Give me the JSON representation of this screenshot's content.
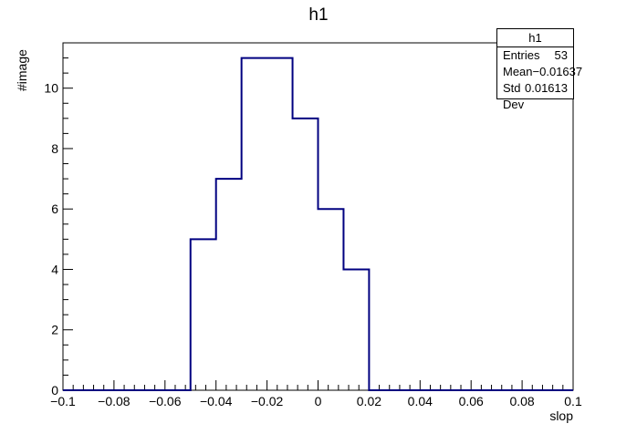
{
  "chart_data": {
    "type": "bar",
    "title": "h1",
    "xlabel": "slop",
    "ylabel": "#image",
    "xlim": [
      -0.1,
      0.1
    ],
    "ylim": [
      0,
      11.5
    ],
    "x_ticks": [
      "−0.1",
      "−0.08",
      "−0.06",
      "−0.04",
      "−0.02",
      "0",
      "0.02",
      "0.04",
      "0.06",
      "0.08",
      "0.1"
    ],
    "x_tick_values": [
      -0.1,
      -0.08,
      -0.06,
      -0.04,
      -0.02,
      0,
      0.02,
      0.04,
      0.06,
      0.08,
      0.1
    ],
    "y_ticks": [
      "0",
      "2",
      "4",
      "6",
      "8",
      "10"
    ],
    "y_tick_values": [
      0,
      2,
      4,
      6,
      8,
      10
    ],
    "bin_width": 0.01,
    "bins": [
      {
        "low": -0.05,
        "high": -0.04,
        "value": 5
      },
      {
        "low": -0.04,
        "high": -0.03,
        "value": 7
      },
      {
        "low": -0.03,
        "high": -0.02,
        "value": 11
      },
      {
        "low": -0.02,
        "high": -0.01,
        "value": 11
      },
      {
        "low": -0.01,
        "high": 0.0,
        "value": 9
      },
      {
        "low": 0.0,
        "high": 0.01,
        "value": 6
      },
      {
        "low": 0.01,
        "high": 0.02,
        "value": 4
      }
    ],
    "line_color": "#000080",
    "stats": {
      "title": "h1",
      "rows": [
        {
          "label": "Entries",
          "value": "53"
        },
        {
          "label": "Mean",
          "value": "−0.01637"
        },
        {
          "label": "Std Dev",
          "value": "0.01613"
        }
      ]
    }
  }
}
